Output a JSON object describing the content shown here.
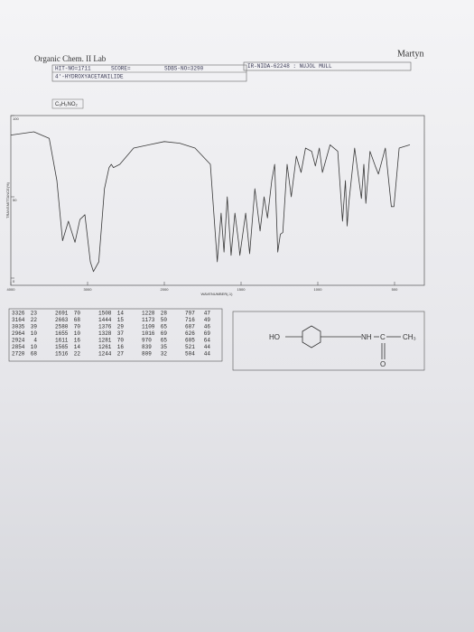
{
  "header": {
    "signature": "Martyn",
    "course": "Organic Chem. II Lab",
    "hit_no": "HIT-NO=1711",
    "score": "SCORE=",
    "sdbs_no": "SDBS-NO=3290",
    "ir_code": "IR-NIDA-62248 : NUJOL MULL",
    "compound": "4'-HYDROXYACETANILIDE",
    "formula": "C₈H₉NO₂"
  },
  "chart_data": {
    "type": "line",
    "y_label": "TRANSMITTANCE(%)",
    "x_label": "WAVENUMBER(-1)",
    "color": "#3a3a3a",
    "x": [
      4000,
      3700,
      3500,
      3400,
      3326,
      3250,
      3164,
      3100,
      3035,
      2964,
      2924,
      2854,
      2780,
      2720,
      2691,
      2663,
      2580,
      2400,
      2200,
      2000,
      1900,
      1800,
      1700,
      1655,
      1630,
      1611,
      1590,
      1565,
      1540,
      1516,
      1508,
      1470,
      1444,
      1410,
      1376,
      1350,
      1328,
      1300,
      1281,
      1261,
      1244,
      1228,
      1200,
      1173,
      1140,
      1109,
      1080,
      1040,
      1016,
      990,
      970,
      920,
      870,
      839,
      820,
      809,
      797,
      760,
      716,
      700,
      687,
      660,
      626,
      605,
      560,
      521,
      504,
      470,
      400
    ],
    "values": [
      88,
      90,
      86,
      60,
      23,
      35,
      22,
      36,
      39,
      10,
      4,
      10,
      55,
      68,
      70,
      68,
      70,
      80,
      82,
      84,
      83,
      80,
      70,
      10,
      40,
      16,
      50,
      14,
      40,
      22,
      14,
      40,
      15,
      55,
      29,
      50,
      37,
      60,
      70,
      16,
      27,
      28,
      70,
      50,
      75,
      65,
      80,
      78,
      69,
      80,
      65,
      82,
      78,
      35,
      60,
      32,
      47,
      80,
      49,
      70,
      46,
      78,
      69,
      64,
      80,
      44,
      44,
      80,
      82
    ],
    "xlim": [
      4000,
      400
    ],
    "ylim": [
      0,
      100
    ],
    "yticks": [
      0,
      50,
      100
    ],
    "xticks": [
      4000,
      3000,
      2000,
      1500,
      1000,
      500
    ],
    "x_scale_break": 2000
  },
  "peak_table": {
    "rows": [
      [
        3326,
        23,
        2691,
        70,
        1508,
        14,
        1228,
        28,
        797,
        47
      ],
      [
        3164,
        22,
        2663,
        68,
        1444,
        15,
        1173,
        50,
        716,
        49
      ],
      [
        3035,
        39,
        2580,
        70,
        1376,
        29,
        1109,
        65,
        687,
        46
      ],
      [
        2964,
        10,
        1655,
        10,
        1328,
        37,
        1016,
        69,
        626,
        69
      ],
      [
        2924,
        4,
        1611,
        16,
        1281,
        70,
        970,
        65,
        605,
        64
      ],
      [
        2854,
        10,
        1565,
        14,
        1261,
        16,
        839,
        35,
        521,
        44
      ],
      [
        2720,
        68,
        1516,
        22,
        1244,
        27,
        809,
        32,
        504,
        44
      ]
    ]
  },
  "structure": {
    "labels": [
      "HO",
      "NH",
      "C",
      "CH₃",
      "O"
    ]
  }
}
